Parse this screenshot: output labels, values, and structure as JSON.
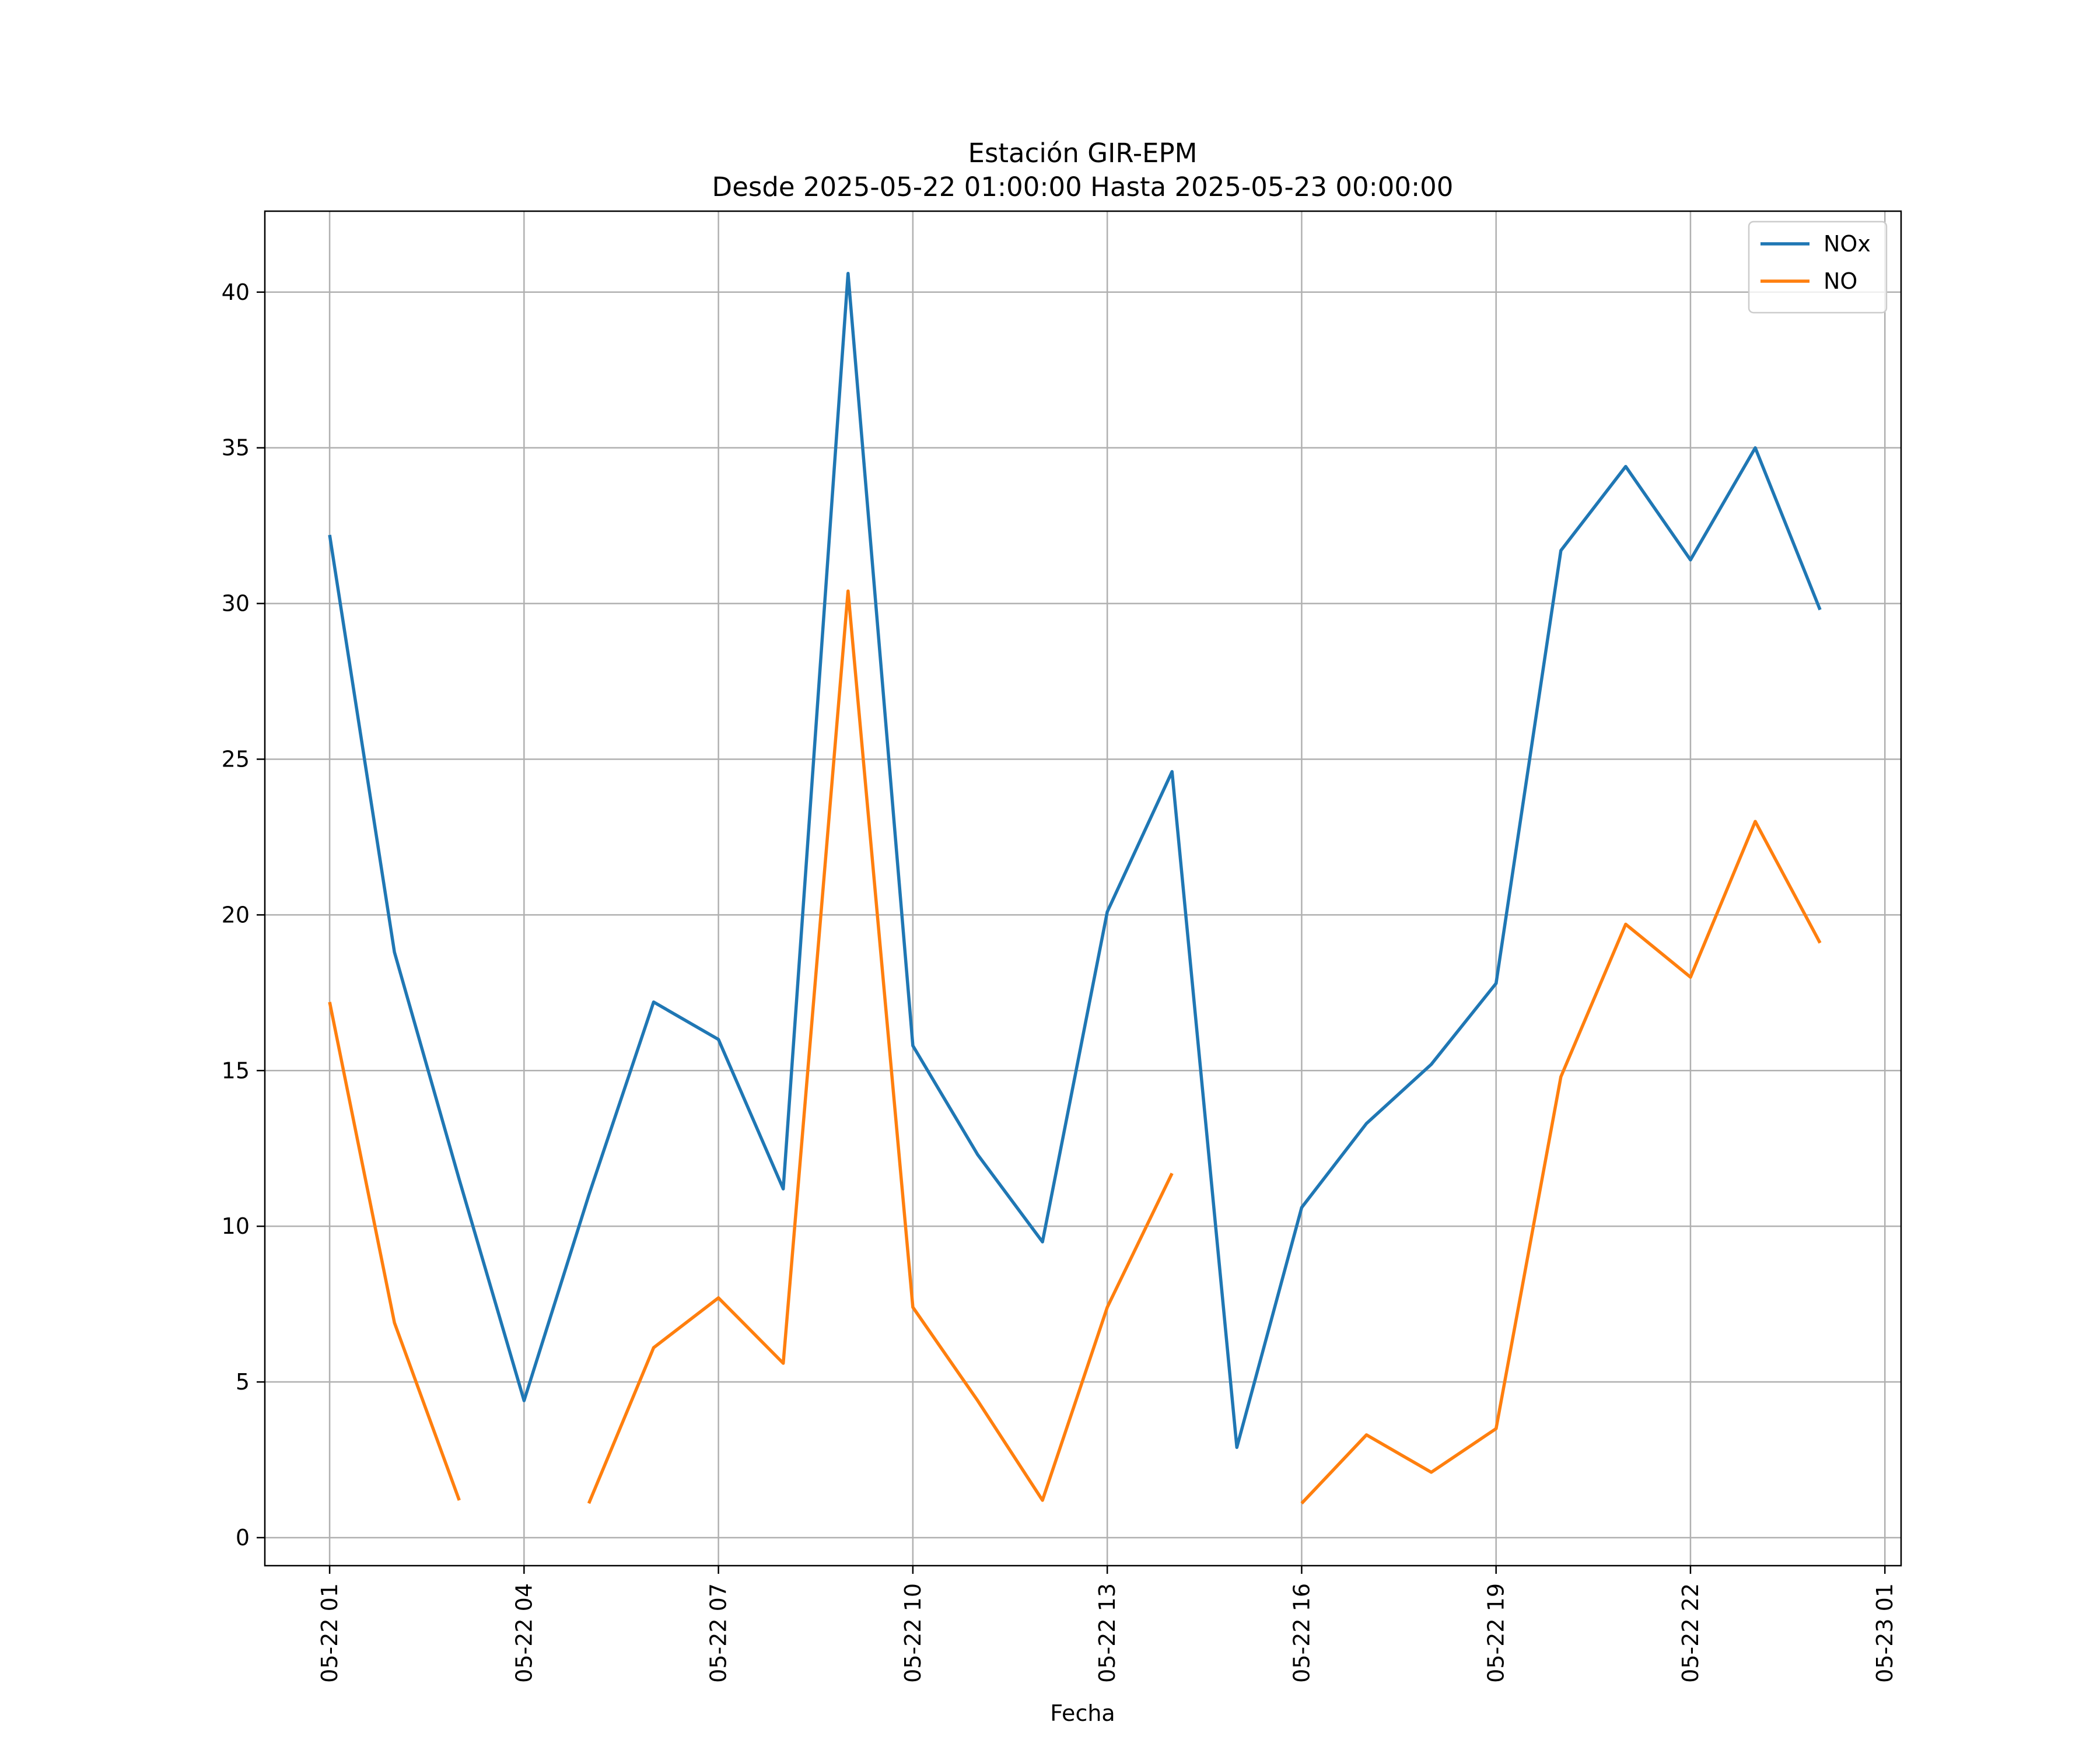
{
  "chart_data": {
    "type": "line",
    "title": "Estación GIR-EPM",
    "subtitle": "Desde 2025-05-22 01:00:00 Hasta 2025-05-23 00:00:00",
    "xlabel": "Fecha",
    "ylabel": "",
    "x": [
      "2025-05-22 01:00",
      "2025-05-22 02:00",
      "2025-05-22 03:00",
      "2025-05-22 04:00",
      "2025-05-22 05:00",
      "2025-05-22 06:00",
      "2025-05-22 07:00",
      "2025-05-22 08:00",
      "2025-05-22 09:00",
      "2025-05-22 10:00",
      "2025-05-22 11:00",
      "2025-05-22 12:00",
      "2025-05-22 13:00",
      "2025-05-22 14:00",
      "2025-05-22 15:00",
      "2025-05-22 16:00",
      "2025-05-22 17:00",
      "2025-05-22 18:00",
      "2025-05-22 19:00",
      "2025-05-22 20:00",
      "2025-05-22 21:00",
      "2025-05-22 22:00",
      "2025-05-22 23:00",
      "2025-05-23 00:00"
    ],
    "xlim": [
      "2025-05-22 00:00",
      "2025-05-23 01:15"
    ],
    "ylim": [
      -0.9,
      42.6
    ],
    "x_ticks": [
      "05-22 01",
      "05-22 04",
      "05-22 07",
      "05-22 10",
      "05-22 13",
      "05-22 16",
      "05-22 19",
      "05-22 22",
      "05-23 01"
    ],
    "y_ticks": [
      0,
      5,
      10,
      15,
      20,
      25,
      30,
      35,
      40
    ],
    "grid": true,
    "legend_position": "top-right",
    "series": [
      {
        "name": "NOx",
        "color": "#1f77b4",
        "values": [
          32.2,
          18.8,
          11.5,
          4.4,
          11.0,
          17.2,
          16.0,
          11.2,
          40.6,
          15.8,
          12.3,
          9.5,
          20.1,
          24.6,
          2.9,
          10.6,
          13.3,
          15.2,
          17.8,
          31.7,
          34.4,
          31.4,
          35.0,
          29.8
        ]
      },
      {
        "name": "NO",
        "color": "#ff7f0e",
        "values": [
          17.2,
          6.9,
          1.2,
          null,
          1.1,
          6.1,
          7.7,
          5.6,
          30.4,
          7.4,
          4.4,
          1.2,
          7.4,
          11.7,
          null,
          1.1,
          3.3,
          2.1,
          3.5,
          14.8,
          19.7,
          18.0,
          23.0,
          19.1
        ]
      }
    ]
  }
}
